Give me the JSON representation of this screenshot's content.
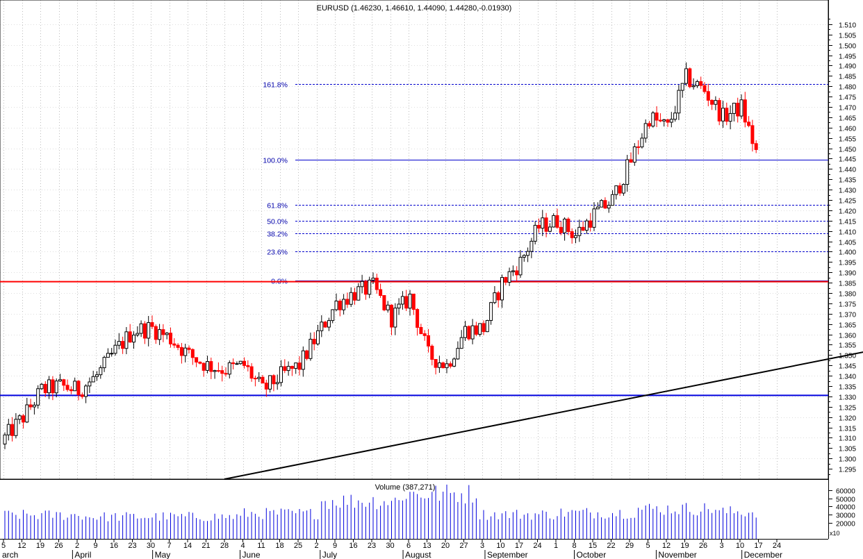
{
  "header": {
    "title": "EURUSD (1.46230, 1.46610, 1.44090, 1.44280,-0.01930)",
    "volume_label": "Volume (387,271)",
    "volume_scale_tag": "x10"
  },
  "colors": {
    "up_candle": "#ffffff",
    "down_candle": "#ff0000",
    "wick": "#000000",
    "fib_line": "#0000cc",
    "fib_text": "#0000aa",
    "red_resistance": "#ff0000",
    "blue_support": "#0000dd",
    "trendline": "#000000",
    "volume_bar": "#0000dd"
  },
  "price_axis": {
    "min": 1.29,
    "max": 1.515,
    "ticks": [
      "1.295",
      "1.300",
      "1.305",
      "1.310",
      "1.315",
      "1.320",
      "1.325",
      "1.330",
      "1.335",
      "1.340",
      "1.345",
      "1.350",
      "1.355",
      "1.360",
      "1.365",
      "1.370",
      "1.375",
      "1.380",
      "1.385",
      "1.390",
      "1.395",
      "1.400",
      "1.405",
      "1.410",
      "1.415",
      "1.420",
      "1.425",
      "1.430",
      "1.435",
      "1.440",
      "1.445",
      "1.450",
      "1.455",
      "1.460",
      "1.465",
      "1.470",
      "1.475",
      "1.480",
      "1.485",
      "1.490",
      "1.495",
      "1.500",
      "1.505",
      "1.510"
    ]
  },
  "volume_axis": {
    "min": 0,
    "max": 65000,
    "ticks": [
      "20000",
      "30000",
      "40000",
      "50000",
      "60000"
    ]
  },
  "x_axis": {
    "day_labels": [
      "5",
      "12",
      "19",
      "26",
      "2",
      "9",
      "16",
      "23",
      "30",
      "7",
      "14",
      "21",
      "28",
      "4",
      "11",
      "18",
      "25",
      "2",
      "9",
      "16",
      "23",
      "30",
      "6",
      "13",
      "20",
      "27",
      "3",
      "10",
      "17",
      "24",
      "1",
      "8",
      "15",
      "22",
      "29",
      "5",
      "12",
      "19",
      "26",
      "3",
      "10",
      "17",
      "24"
    ],
    "months": [
      "arch",
      "April",
      "May",
      "June",
      "July",
      "August",
      "September",
      "October",
      "November",
      "December"
    ]
  },
  "fibonacci": [
    {
      "label": "0.0%",
      "price": 1.386
    },
    {
      "label": "23.6%",
      "price": 1.4
    },
    {
      "label": "38.2%",
      "price": 1.409
    },
    {
      "label": "50.0%",
      "price": 1.415
    },
    {
      "label": "61.8%",
      "price": 1.4225
    },
    {
      "label": "100.0%",
      "price": 1.4445
    },
    {
      "label": "161.8%",
      "price": 1.481
    }
  ],
  "horizontal_lines": {
    "red_resistance": 1.3855,
    "blue_support": 1.3305
  },
  "trendline": {
    "start": {
      "week": 12,
      "price": 1.29
    },
    "end": {
      "week": 56.6,
      "price": 1.369
    }
  },
  "chart_data": {
    "type": "candlestick",
    "title": "EURUSD (1.46230, 1.46610, 1.44090, 1.44280,-0.01930)",
    "last": {
      "open": 1.4623,
      "high": 1.4661,
      "low": 1.4409,
      "close": 1.4428,
      "change": -0.0193
    },
    "series": [
      {
        "name": "EURUSD",
        "type": "line",
        "approximate_closes": [
          {
            "x": "Mar 5",
            "y": 1.31
          },
          {
            "x": "Mar 12",
            "y": 1.32
          },
          {
            "x": "Mar 19",
            "y": 1.333
          },
          {
            "x": "Mar 26",
            "y": 1.335
          },
          {
            "x": "Apr 2",
            "y": 1.333
          },
          {
            "x": "Apr 9",
            "y": 1.34
          },
          {
            "x": "Apr 16",
            "y": 1.352
          },
          {
            "x": "Apr 23",
            "y": 1.362
          },
          {
            "x": "Apr 30",
            "y": 1.363
          },
          {
            "x": "May 7",
            "y": 1.358
          },
          {
            "x": "May 14",
            "y": 1.35
          },
          {
            "x": "May 21",
            "y": 1.345
          },
          {
            "x": "May 28",
            "y": 1.343
          },
          {
            "x": "Jun 4",
            "y": 1.345
          },
          {
            "x": "Jun 11",
            "y": 1.333
          },
          {
            "x": "Jun 18",
            "y": 1.34
          },
          {
            "x": "Jun 25",
            "y": 1.345
          },
          {
            "x": "Jul 2",
            "y": 1.36
          },
          {
            "x": "Jul 9",
            "y": 1.375
          },
          {
            "x": "Jul 16",
            "y": 1.38
          },
          {
            "x": "Jul 23",
            "y": 1.383
          },
          {
            "x": "Jul 30",
            "y": 1.368
          },
          {
            "x": "Aug 6",
            "y": 1.378
          },
          {
            "x": "Aug 13",
            "y": 1.35
          },
          {
            "x": "Aug 20",
            "y": 1.345
          },
          {
            "x": "Aug 27",
            "y": 1.362
          },
          {
            "x": "Sep 3",
            "y": 1.363
          },
          {
            "x": "Sep 10",
            "y": 1.385
          },
          {
            "x": "Sep 17",
            "y": 1.395
          },
          {
            "x": "Sep 24",
            "y": 1.412
          },
          {
            "x": "Oct 1",
            "y": 1.415
          },
          {
            "x": "Oct 8",
            "y": 1.408
          },
          {
            "x": "Oct 15",
            "y": 1.418
          },
          {
            "x": "Oct 22",
            "y": 1.425
          },
          {
            "x": "Oct 29",
            "y": 1.444
          },
          {
            "x": "Nov 5",
            "y": 1.465
          },
          {
            "x": "Nov 12",
            "y": 1.46
          },
          {
            "x": "Nov 19",
            "y": 1.484
          },
          {
            "x": "Nov 26",
            "y": 1.478
          },
          {
            "x": "Dec 3",
            "y": 1.465
          },
          {
            "x": "Dec 10",
            "y": 1.47
          },
          {
            "x": "Dec 14",
            "y": 1.4428
          }
        ]
      },
      {
        "name": "Volume",
        "type": "bar",
        "approximate_weekly": [
          {
            "x": "Mar",
            "y": 30000
          },
          {
            "x": "Apr",
            "y": 28000
          },
          {
            "x": "May",
            "y": 28000
          },
          {
            "x": "Jun",
            "y": 32000
          },
          {
            "x": "Jul",
            "y": 48000
          },
          {
            "x": "Aug",
            "y": 57000
          },
          {
            "x": "Sep",
            "y": 31000
          },
          {
            "x": "Oct",
            "y": 33000
          },
          {
            "x": "Nov",
            "y": 38000
          },
          {
            "x": "Dec",
            "y": 34000
          }
        ]
      }
    ],
    "ylim": [
      1.29,
      1.515
    ],
    "volume_ylim": [
      0,
      65000
    ],
    "grid": true,
    "legend": "none"
  }
}
